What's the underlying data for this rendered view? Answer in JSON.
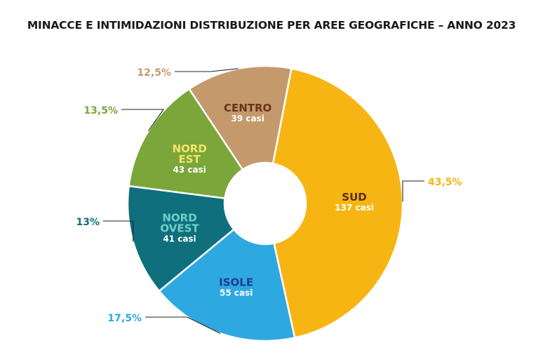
{
  "chart_data": {
    "type": "pie",
    "variant": "donut",
    "title": "MINACCE E INTIMIDAZIONI DISTRIBUZIONE PER AREE GEOGRAFICHE – ANNO 2023",
    "slices": [
      {
        "label": [
          "SUD"
        ],
        "cases": "137 casi",
        "value": 137,
        "percent": "43,5%",
        "color": "#f7b514",
        "label_color": "#5a2d0c"
      },
      {
        "label": [
          "ISOLE"
        ],
        "cases": "55 casi",
        "value": 55,
        "percent": "17,5%",
        "color": "#2ea8e0",
        "label_color": "#1d3d8f"
      },
      {
        "label": [
          "NORD",
          "OVEST"
        ],
        "cases": "41 casi",
        "value": 41,
        "percent": "13%",
        "color": "#0f6f7c",
        "label_color": "#6fd0c8"
      },
      {
        "label": [
          "NORD",
          "EST"
        ],
        "cases": "43 casi",
        "value": 43,
        "percent": "13,5%",
        "color": "#7ba63a",
        "label_color": "#f3e46a"
      },
      {
        "label": [
          "CENTRO"
        ],
        "cases": "39 casi",
        "value": 39,
        "percent": "12,5%",
        "color": "#c49a6c",
        "label_color": "#6b3316"
      }
    ]
  }
}
